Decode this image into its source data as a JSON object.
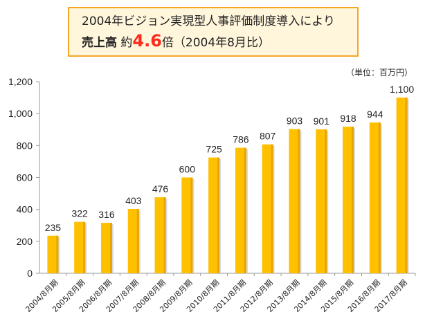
{
  "header": {
    "line1": "2004年ビジョン実現型人事評価制度導入により",
    "line2_prefix": "売上高",
    "line2_mid": "約",
    "line2_value": "4.6",
    "line2_suffix": "倍（2004年8月比）"
  },
  "unit_label": "（単位：百万円）",
  "chart_data": {
    "type": "bar",
    "categories": [
      "2004/8月期",
      "2005/8月期",
      "2006/8月期",
      "2007/8月期",
      "2008/8月期",
      "2009/8月期",
      "2010/8月期",
      "2011/8月期",
      "2012/8月期",
      "2013/8月期",
      "2014/8月期",
      "2015/8月期",
      "2016/8月期",
      "2017/8月期"
    ],
    "values": [
      235,
      322,
      316,
      403,
      476,
      600,
      725,
      786,
      807,
      903,
      901,
      918,
      944,
      1100
    ],
    "value_labels": [
      "235",
      "322",
      "316",
      "403",
      "476",
      "600",
      "725",
      "786",
      "807",
      "903",
      "901",
      "918",
      "944",
      "1,100"
    ],
    "title": "",
    "xlabel": "",
    "ylabel": "",
    "ylim": [
      0,
      1200
    ],
    "yticks": [
      0,
      200,
      400,
      600,
      800,
      1000,
      1200
    ],
    "ytick_labels": [
      "0",
      "200",
      "400",
      "600",
      "800",
      "1,000",
      "1,200"
    ],
    "grid": false,
    "colors": {
      "bar": "#ffc000",
      "bar_shade": "#e6a500",
      "axis": "#9a9a9a"
    }
  }
}
